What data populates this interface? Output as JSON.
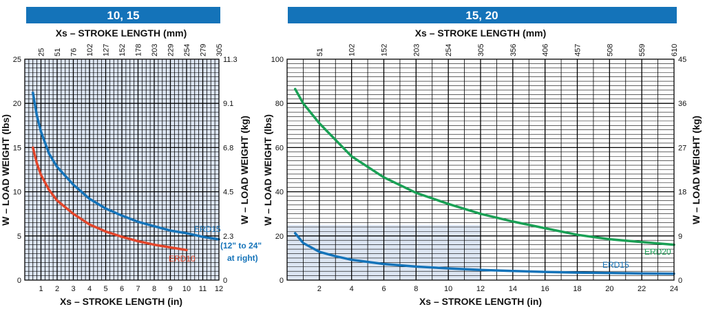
{
  "chart_data": [
    {
      "type": "line",
      "title": "10, 15",
      "xlabel": "Xs – STROKE  LENGTH (in)",
      "x2label": "Xs – STROKE  LENGTH (mm)",
      "ylabel": "W – LOAD WEIGHT (lbs)",
      "y2label": "W – LOAD WEIGHT (kg)",
      "xlim": [
        0,
        12
      ],
      "ylim": [
        0,
        25
      ],
      "x_ticks": [
        "1",
        "2",
        "3",
        "4",
        "5",
        "6",
        "7",
        "8",
        "9",
        "10",
        "11",
        "12"
      ],
      "x2_ticks": [
        "25",
        "51",
        "76",
        "102",
        "127",
        "152",
        "178",
        "203",
        "229",
        "254",
        "279",
        "305"
      ],
      "y_ticks": [
        "0",
        "5",
        "10",
        "15",
        "20",
        "25"
      ],
      "y2_ticks": [
        "0",
        "2.3",
        "4.5",
        "6.8",
        "9.1",
        "11.3"
      ],
      "grid": true,
      "background": "#dde6f3",
      "series": [
        {
          "name": "ERD15",
          "color": "#1473b9",
          "x": [
            0.5,
            0.75,
            1,
            1.5,
            2,
            3,
            4,
            5,
            6,
            7,
            8,
            9,
            10,
            11,
            12
          ],
          "y": [
            21.2,
            18.6,
            16.8,
            14.3,
            12.8,
            10.8,
            9.2,
            8.1,
            7.3,
            6.6,
            6.1,
            5.6,
            5.3,
            4.9,
            4.6
          ]
        },
        {
          "name": "ERD10",
          "color": "#e2452a",
          "x": [
            0.5,
            0.75,
            1,
            1.5,
            2,
            3,
            4,
            5,
            6,
            7,
            8,
            9,
            10
          ],
          "y": [
            15.0,
            13.2,
            11.9,
            10.2,
            9.0,
            7.5,
            6.3,
            5.5,
            4.9,
            4.4,
            4.0,
            3.7,
            3.4
          ]
        }
      ],
      "annotations": [
        "(12\" to 24\"",
        "at right)"
      ]
    },
    {
      "type": "line",
      "title": "15, 20",
      "xlabel": "Xs – STROKE  LENGTH (in)",
      "x2label": "Xs – STROKE  LENGTH (mm)",
      "ylabel": "W – LOAD WEIGHT (lbs)",
      "y2label": "W – LOAD WEIGHT (kg)",
      "xlim": [
        0,
        24
      ],
      "ylim": [
        0,
        100
      ],
      "x_ticks": [
        "2",
        "4",
        "6",
        "8",
        "10",
        "12",
        "14",
        "16",
        "18",
        "20",
        "22",
        "24"
      ],
      "x2_ticks": [
        "51",
        "102",
        "152",
        "203",
        "254",
        "305",
        "356",
        "406",
        "457",
        "508",
        "559",
        "610"
      ],
      "y_ticks": [
        "0",
        "20",
        "40",
        "60",
        "80",
        "100"
      ],
      "y2_ticks": [
        "0",
        "9",
        "18",
        "27",
        "36",
        "45"
      ],
      "grid": true,
      "shaded_region": {
        "x": [
          0,
          12
        ],
        "y": [
          0,
          25
        ]
      },
      "series": [
        {
          "name": "ERD20",
          "color": "#1aa055",
          "x": [
            0.5,
            1,
            2,
            3,
            4,
            6,
            8,
            10,
            12,
            14,
            16,
            18,
            20,
            22,
            24
          ],
          "y": [
            86.5,
            80.0,
            71.0,
            63.5,
            56.0,
            46.5,
            39.5,
            34.5,
            30.0,
            26.5,
            23.5,
            20.5,
            18.5,
            17.2,
            16.0
          ]
        },
        {
          "name": "ERD15",
          "color": "#1473b9",
          "x": [
            0.5,
            1,
            2,
            3,
            4,
            6,
            8,
            10,
            12,
            14,
            16,
            18,
            20,
            22,
            24
          ],
          "y": [
            21.2,
            16.8,
            12.8,
            10.8,
            9.2,
            7.3,
            6.1,
            5.3,
            4.6,
            4.1,
            3.7,
            3.4,
            3.2,
            3.0,
            2.9
          ]
        }
      ]
    }
  ]
}
